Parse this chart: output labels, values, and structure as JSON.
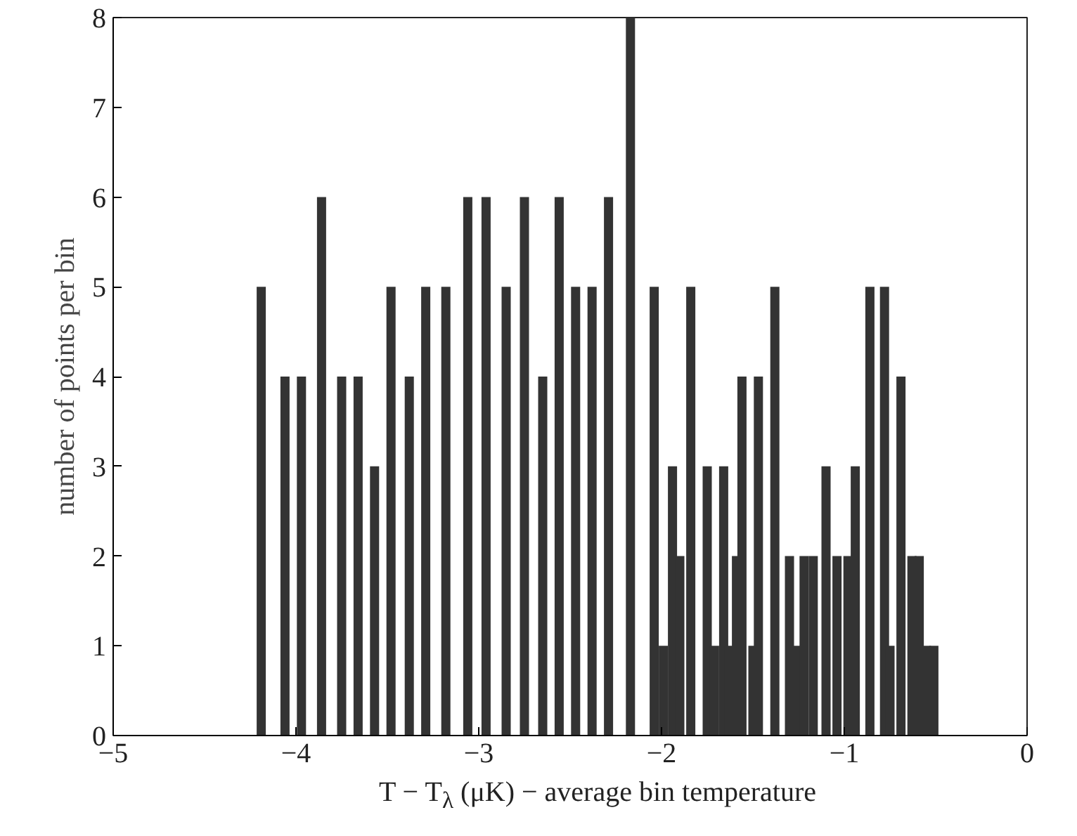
{
  "chart_data": {
    "type": "bar",
    "xlabel": "T − T$_{λ}$ (μK) − average bin temperature",
    "ylabel": "number of points per bin",
    "x": [
      -4.19,
      -4.06,
      -3.97,
      -3.86,
      -3.75,
      -3.66,
      -3.57,
      -3.48,
      -3.38,
      -3.29,
      -3.18,
      -3.06,
      -2.96,
      -2.85,
      -2.75,
      -2.65,
      -2.56,
      -2.47,
      -2.38,
      -2.29,
      -2.17,
      -2.04,
      -1.99,
      -1.94,
      -1.9,
      -1.84,
      -1.75,
      -1.71,
      -1.66,
      -1.63,
      -1.59,
      -1.56,
      -1.5,
      -1.47,
      -1.38,
      -1.3,
      -1.26,
      -1.22,
      -1.17,
      -1.1,
      -1.04,
      -0.98,
      -0.94,
      -0.86,
      -0.78,
      -0.75,
      -0.69,
      -0.63,
      -0.59,
      -0.55,
      -0.51
    ],
    "values": [
      5,
      4,
      4,
      6,
      4,
      4,
      3,
      5,
      4,
      5,
      5,
      6,
      6,
      5,
      6,
      4,
      6,
      5,
      5,
      6,
      8,
      5,
      1,
      3,
      2,
      5,
      3,
      1,
      3,
      1,
      2,
      4,
      1,
      4,
      5,
      2,
      1,
      2,
      2,
      3,
      2,
      2,
      3,
      5,
      5,
      1,
      4,
      2,
      2,
      1,
      1
    ],
    "color": "#333333",
    "xlim": [
      -5,
      0
    ],
    "xticks": [
      -5,
      -4,
      -3,
      -2,
      -1,
      0
    ],
    "ylim": [
      0,
      8
    ],
    "yticks": [
      0,
      1,
      2,
      3,
      4,
      5,
      6,
      7,
      8
    ],
    "grid": false
  }
}
